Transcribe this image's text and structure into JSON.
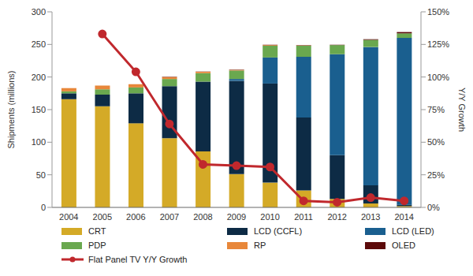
{
  "chart_data": {
    "type": "bar",
    "stacked": true,
    "grid": false,
    "legend": "bottom",
    "y_label": "Shipments (millions)",
    "y2_label": "Y/Y Growth",
    "categories": [
      "2004",
      "2005",
      "2006",
      "2007",
      "2008",
      "2009",
      "2010",
      "2011",
      "2012",
      "2013",
      "2014"
    ],
    "ylim": [
      0,
      300
    ],
    "yticks": [
      0,
      50,
      100,
      150,
      200,
      250,
      300
    ],
    "y2lim": [
      0,
      150
    ],
    "y2ticks": [
      {
        "value": 0,
        "label": "0%"
      },
      {
        "value": 25,
        "label": "25%"
      },
      {
        "value": 50,
        "label": "50%"
      },
      {
        "value": 75,
        "label": "75%"
      },
      {
        "value": 100,
        "label": "100%"
      },
      {
        "value": 125,
        "label": "125%"
      },
      {
        "value": 150,
        "label": "150%"
      }
    ],
    "series": [
      {
        "name": "CRT",
        "type": "bar",
        "color": "#d4aa27",
        "values": [
          166,
          155,
          129,
          106,
          86,
          51,
          38,
          26,
          13,
          6,
          2
        ]
      },
      {
        "name": "LCD (CCFL)",
        "type": "bar",
        "color": "#0d2b45",
        "values": [
          9,
          18,
          46,
          80,
          107,
          143,
          152,
          112,
          67,
          28,
          2
        ]
      },
      {
        "name": "LCD (LED)",
        "type": "bar",
        "color": "#1a5f8f",
        "values": [
          0,
          0,
          0,
          0,
          0,
          3,
          40,
          93,
          155,
          212,
          256
        ]
      },
      {
        "name": "PDP",
        "type": "bar",
        "color": "#6aa84f",
        "values": [
          3,
          8,
          9,
          11,
          13,
          13,
          18,
          17,
          14,
          11,
          7
        ]
      },
      {
        "name": "RP",
        "type": "bar",
        "color": "#e8873a",
        "values": [
          5,
          6,
          5,
          3,
          2,
          1,
          1,
          0.5,
          0,
          0,
          0
        ]
      },
      {
        "name": "OLED",
        "type": "bar",
        "color": "#5c0a0a",
        "values": [
          0,
          0,
          0,
          0.5,
          0.5,
          0.5,
          0.5,
          0.5,
          0.5,
          1,
          2
        ]
      },
      {
        "name": "Flat Panel TV Y/Y Growth",
        "type": "line",
        "axis": "y2",
        "marker": "circle",
        "color": "#c0282d",
        "values": [
          null,
          133,
          104,
          64,
          33,
          32,
          31,
          5,
          4,
          7.5,
          5
        ]
      }
    ]
  }
}
